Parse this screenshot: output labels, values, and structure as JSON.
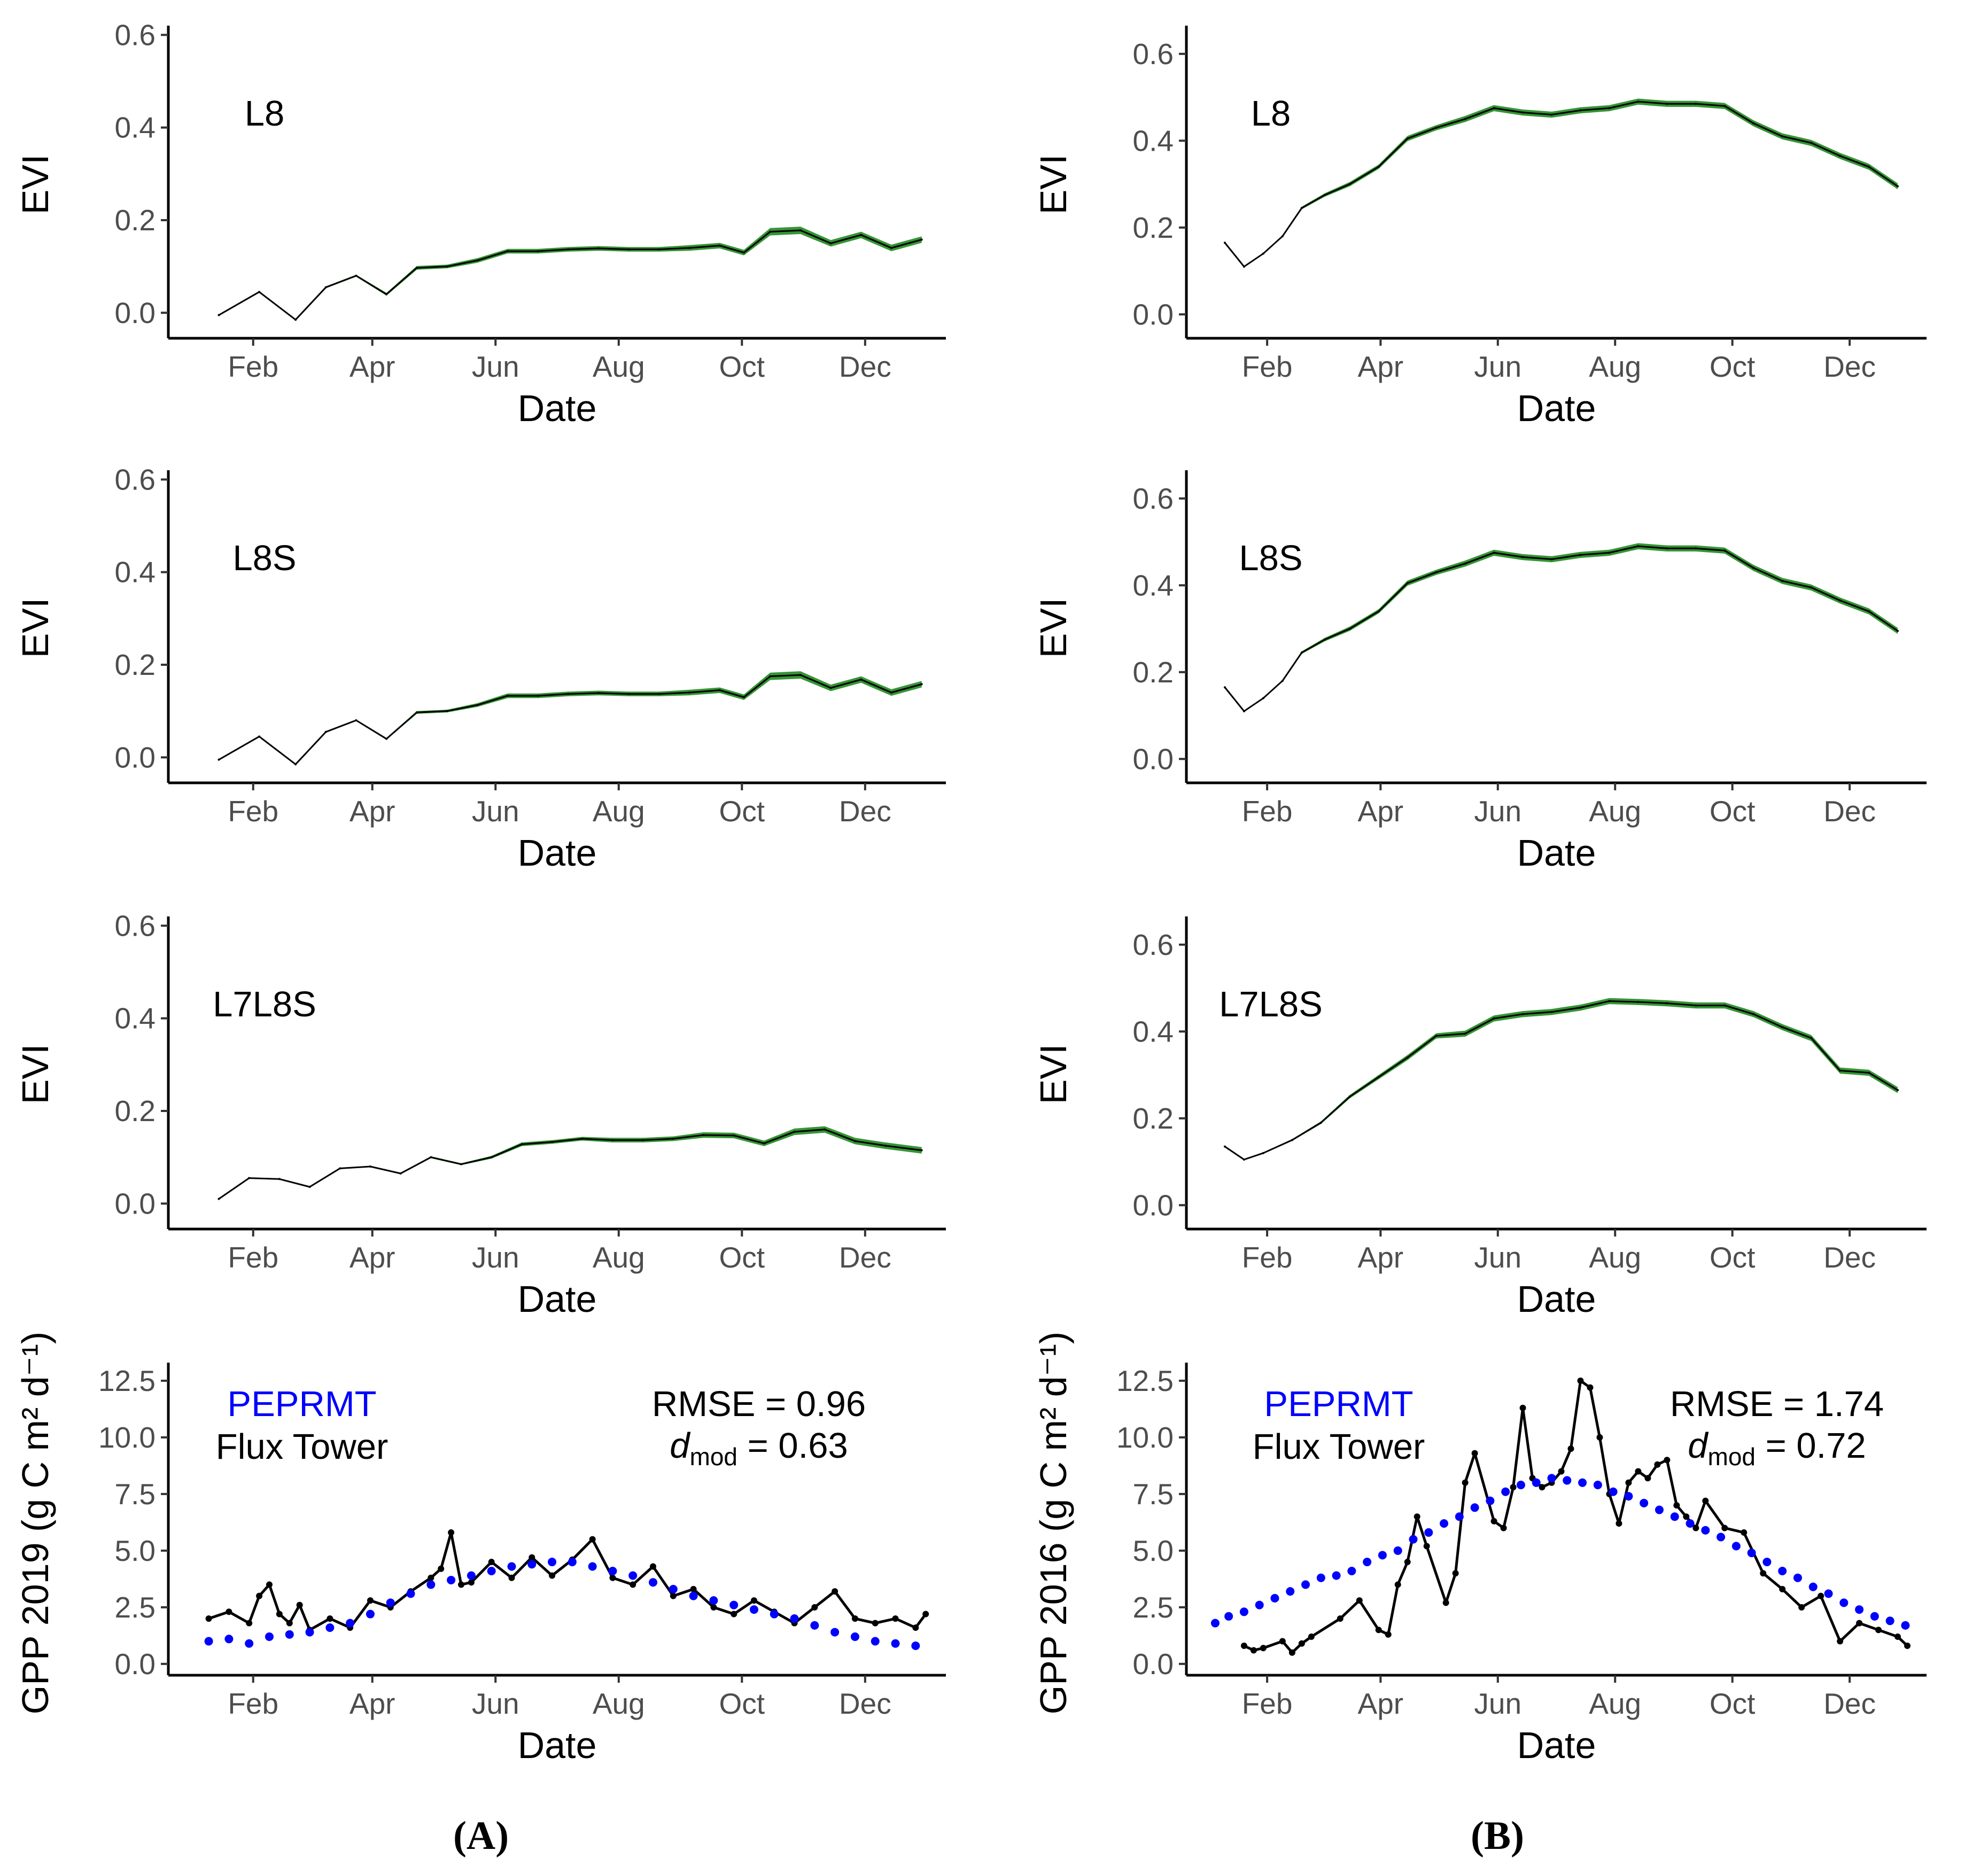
{
  "chart_data": [
    {
      "id": "A1",
      "type": "line",
      "xlabel": "Date",
      "ylabel": "EVI",
      "series_label": "L8",
      "x": [
        15,
        35,
        53,
        68,
        83,
        98,
        113,
        128,
        143,
        158,
        173,
        188,
        203,
        218,
        233,
        248,
        263,
        275,
        288,
        303,
        318,
        333,
        348,
        363
      ],
      "y": [
        -0.005,
        0.045,
        -0.015,
        0.055,
        0.08,
        0.04,
        0.097,
        0.1,
        0.113,
        0.133,
        0.133,
        0.137,
        0.139,
        0.137,
        0.137,
        0.14,
        0.145,
        0.13,
        0.175,
        0.178,
        0.15,
        0.168,
        0.14,
        0.158
      ],
      "band": [
        0.0,
        0.002,
        0.0,
        0.002,
        0.002,
        0.003,
        0.004,
        0.004,
        0.005,
        0.005,
        0.005,
        0.005,
        0.005,
        0.005,
        0.005,
        0.006,
        0.006,
        0.006,
        0.008,
        0.008,
        0.007,
        0.007,
        0.007,
        0.007
      ],
      "ylim": [
        -0.055,
        0.62
      ],
      "yticks": [
        0.0,
        0.2,
        0.4,
        0.6
      ],
      "ytick_labels": [
        "0.0",
        "0.2",
        "0.4",
        "0.6"
      ]
    },
    {
      "id": "A2",
      "type": "line",
      "xlabel": "Date",
      "ylabel": "EVI",
      "series_label": "L8S",
      "x": [
        15,
        35,
        53,
        68,
        83,
        98,
        113,
        128,
        143,
        158,
        173,
        188,
        203,
        218,
        233,
        248,
        263,
        275,
        288,
        303,
        318,
        333,
        348,
        363
      ],
      "y": [
        -0.005,
        0.045,
        -0.015,
        0.055,
        0.08,
        0.04,
        0.097,
        0.1,
        0.113,
        0.133,
        0.133,
        0.137,
        0.139,
        0.137,
        0.137,
        0.14,
        0.145,
        0.13,
        0.175,
        0.178,
        0.15,
        0.168,
        0.14,
        0.158
      ],
      "band": [
        0.0,
        0.001,
        0.0,
        0.001,
        0.001,
        0.002,
        0.003,
        0.003,
        0.004,
        0.005,
        0.005,
        0.005,
        0.005,
        0.005,
        0.005,
        0.006,
        0.006,
        0.006,
        0.008,
        0.008,
        0.007,
        0.007,
        0.007,
        0.007
      ],
      "ylim": [
        -0.055,
        0.62
      ],
      "yticks": [
        0.0,
        0.2,
        0.4,
        0.6
      ],
      "ytick_labels": [
        "0.0",
        "0.2",
        "0.4",
        "0.6"
      ]
    },
    {
      "id": "A3",
      "type": "line",
      "xlabel": "Date",
      "ylabel": "EVI",
      "series_label": "L7L8S",
      "x": [
        15,
        30,
        45,
        60,
        75,
        90,
        105,
        120,
        135,
        150,
        165,
        180,
        195,
        210,
        225,
        240,
        255,
        270,
        285,
        300,
        315,
        330,
        345,
        363
      ],
      "y": [
        0.01,
        0.055,
        0.053,
        0.036,
        0.076,
        0.08,
        0.065,
        0.1,
        0.085,
        0.1,
        0.128,
        0.133,
        0.14,
        0.137,
        0.137,
        0.14,
        0.148,
        0.147,
        0.13,
        0.155,
        0.16,
        0.135,
        0.125,
        0.115
      ],
      "band": [
        0.0,
        0.0,
        0.0,
        0.0,
        0.001,
        0.001,
        0.001,
        0.002,
        0.002,
        0.003,
        0.004,
        0.004,
        0.004,
        0.005,
        0.005,
        0.005,
        0.006,
        0.006,
        0.006,
        0.007,
        0.007,
        0.007,
        0.007,
        0.007
      ],
      "ylim": [
        -0.055,
        0.62
      ],
      "yticks": [
        0.0,
        0.2,
        0.4,
        0.6
      ],
      "ytick_labels": [
        "0.0",
        "0.2",
        "0.4",
        "0.6"
      ]
    },
    {
      "id": "A4",
      "type": "line+scatter",
      "xlabel": "Date",
      "ylabel": "GPP 2019 (g C m² d⁻¹)",
      "series": [
        {
          "name": "Flux Tower",
          "style": "line",
          "color": "#000000",
          "x": [
            10,
            20,
            30,
            35,
            40,
            45,
            50,
            55,
            60,
            70,
            80,
            90,
            100,
            110,
            120,
            125,
            130,
            135,
            140,
            150,
            160,
            170,
            180,
            190,
            200,
            210,
            220,
            230,
            240,
            250,
            260,
            270,
            280,
            290,
            300,
            310,
            320,
            330,
            340,
            350,
            360,
            365
          ],
          "y": [
            2.0,
            2.3,
            1.8,
            3.0,
            3.5,
            2.2,
            1.8,
            2.6,
            1.5,
            2.0,
            1.6,
            2.8,
            2.5,
            3.2,
            3.8,
            4.2,
            5.8,
            3.5,
            3.6,
            4.5,
            3.8,
            4.7,
            3.9,
            4.6,
            5.5,
            3.8,
            3.5,
            4.3,
            3.0,
            3.3,
            2.5,
            2.2,
            2.8,
            2.3,
            1.8,
            2.5,
            3.2,
            2.0,
            1.8,
            2.0,
            1.6,
            2.2
          ]
        },
        {
          "name": "PEPRMT",
          "style": "points",
          "color": "#0000ff",
          "x": [
            10,
            20,
            30,
            40,
            50,
            60,
            70,
            80,
            90,
            100,
            110,
            120,
            130,
            140,
            150,
            160,
            170,
            180,
            190,
            200,
            210,
            220,
            230,
            240,
            250,
            260,
            270,
            280,
            290,
            300,
            310,
            320,
            330,
            340,
            350,
            360
          ],
          "y": [
            1.0,
            1.1,
            0.9,
            1.2,
            1.3,
            1.4,
            1.6,
            1.8,
            2.2,
            2.7,
            3.1,
            3.5,
            3.7,
            3.9,
            4.1,
            4.3,
            4.4,
            4.5,
            4.5,
            4.3,
            4.1,
            3.9,
            3.6,
            3.3,
            3.0,
            2.8,
            2.6,
            2.4,
            2.2,
            2.0,
            1.7,
            1.4,
            1.2,
            1.0,
            0.9,
            0.8
          ]
        }
      ],
      "ylim": [
        -0.5,
        13.3
      ],
      "yticks": [
        0.0,
        2.5,
        5.0,
        7.5,
        10.0,
        12.5
      ],
      "ytick_labels": [
        "0.0",
        "2.5",
        "5.0",
        "7.5",
        "10.0",
        "12.5"
      ],
      "stats": {
        "rmse_label": "RMSE = 0.96",
        "d_label": "d",
        "d_sub": "mod",
        "d_value": " = 0.63"
      }
    },
    {
      "id": "B1",
      "type": "line",
      "xlabel": "Date",
      "ylabel": "EVI",
      "series_label": "L8",
      "x": [
        10,
        20,
        30,
        40,
        50,
        62,
        75,
        90,
        105,
        120,
        135,
        150,
        165,
        180,
        195,
        210,
        225,
        240,
        255,
        270,
        285,
        300,
        315,
        330,
        345,
        360
      ],
      "y": [
        0.165,
        0.11,
        0.14,
        0.18,
        0.245,
        0.275,
        0.3,
        0.34,
        0.405,
        0.43,
        0.45,
        0.475,
        0.465,
        0.46,
        0.47,
        0.475,
        0.49,
        0.485,
        0.485,
        0.48,
        0.44,
        0.41,
        0.395,
        0.365,
        0.34,
        0.295
      ],
      "band": [
        0.0,
        0.0,
        0.001,
        0.002,
        0.003,
        0.004,
        0.005,
        0.005,
        0.006,
        0.006,
        0.007,
        0.007,
        0.007,
        0.007,
        0.007,
        0.007,
        0.007,
        0.007,
        0.007,
        0.007,
        0.007,
        0.007,
        0.007,
        0.007,
        0.007,
        0.007
      ],
      "ylim": [
        -0.055,
        0.665
      ],
      "yticks": [
        0.0,
        0.2,
        0.4,
        0.6
      ],
      "ytick_labels": [
        "0.0",
        "0.2",
        "0.4",
        "0.6"
      ]
    },
    {
      "id": "B2",
      "type": "line",
      "xlabel": "Date",
      "ylabel": "EVI",
      "series_label": "L8S",
      "x": [
        10,
        20,
        30,
        40,
        50,
        62,
        75,
        90,
        105,
        120,
        135,
        150,
        165,
        180,
        195,
        210,
        225,
        240,
        255,
        270,
        285,
        300,
        315,
        330,
        345,
        360
      ],
      "y": [
        0.165,
        0.11,
        0.14,
        0.18,
        0.245,
        0.275,
        0.3,
        0.34,
        0.405,
        0.43,
        0.45,
        0.475,
        0.465,
        0.46,
        0.47,
        0.475,
        0.49,
        0.485,
        0.485,
        0.48,
        0.44,
        0.41,
        0.395,
        0.365,
        0.34,
        0.295
      ],
      "band": [
        0.0,
        0.0,
        0.001,
        0.002,
        0.003,
        0.004,
        0.005,
        0.005,
        0.006,
        0.006,
        0.007,
        0.007,
        0.007,
        0.007,
        0.007,
        0.007,
        0.007,
        0.007,
        0.007,
        0.007,
        0.007,
        0.007,
        0.007,
        0.007,
        0.007,
        0.007
      ],
      "ylim": [
        -0.055,
        0.665
      ],
      "yticks": [
        0.0,
        0.2,
        0.4,
        0.6
      ],
      "ytick_labels": [
        "0.0",
        "0.2",
        "0.4",
        "0.6"
      ]
    },
    {
      "id": "B3",
      "type": "line",
      "xlabel": "Date",
      "ylabel": "EVI",
      "series_label": "L7L8S",
      "x": [
        10,
        20,
        30,
        45,
        60,
        75,
        90,
        105,
        120,
        135,
        150,
        165,
        180,
        195,
        210,
        225,
        240,
        255,
        270,
        285,
        300,
        315,
        330,
        345,
        360
      ],
      "y": [
        0.135,
        0.105,
        0.12,
        0.15,
        0.19,
        0.25,
        0.295,
        0.34,
        0.39,
        0.395,
        0.43,
        0.44,
        0.445,
        0.455,
        0.47,
        0.468,
        0.465,
        0.46,
        0.46,
        0.44,
        0.41,
        0.385,
        0.31,
        0.305,
        0.265
      ],
      "band": [
        0.0,
        0.0,
        0.001,
        0.002,
        0.003,
        0.004,
        0.005,
        0.006,
        0.006,
        0.007,
        0.007,
        0.007,
        0.007,
        0.007,
        0.007,
        0.007,
        0.007,
        0.007,
        0.007,
        0.007,
        0.007,
        0.007,
        0.007,
        0.007,
        0.007
      ],
      "ylim": [
        -0.055,
        0.665
      ],
      "yticks": [
        0.0,
        0.2,
        0.4,
        0.6
      ],
      "ytick_labels": [
        "0.0",
        "0.2",
        "0.4",
        "0.6"
      ]
    },
    {
      "id": "B4",
      "type": "line+scatter",
      "xlabel": "Date",
      "ylabel": "GPP 2016 (g C m² d⁻¹)",
      "series": [
        {
          "name": "Flux Tower",
          "style": "line",
          "color": "#000000",
          "x": [
            20,
            25,
            30,
            40,
            45,
            50,
            55,
            70,
            80,
            90,
            95,
            100,
            105,
            110,
            115,
            125,
            130,
            135,
            140,
            150,
            155,
            160,
            165,
            170,
            175,
            180,
            185,
            190,
            195,
            200,
            205,
            210,
            215,
            220,
            225,
            230,
            235,
            240,
            245,
            250,
            255,
            260,
            270,
            280,
            290,
            300,
            310,
            320,
            330,
            340,
            350,
            360,
            365
          ],
          "y": [
            0.8,
            0.6,
            0.7,
            1.0,
            0.5,
            0.9,
            1.2,
            2.0,
            2.8,
            1.5,
            1.3,
            3.5,
            4.5,
            6.5,
            5.2,
            2.7,
            4.0,
            8.0,
            9.3,
            6.3,
            6.0,
            7.8,
            11.3,
            8.2,
            7.8,
            8.0,
            8.5,
            9.5,
            12.5,
            12.2,
            10.0,
            7.5,
            6.2,
            8.0,
            8.5,
            8.2,
            8.8,
            9.0,
            7.0,
            6.5,
            6.0,
            7.2,
            6.0,
            5.8,
            4.0,
            3.3,
            2.5,
            3.0,
            1.0,
            1.8,
            1.5,
            1.2,
            0.8
          ]
        },
        {
          "name": "PEPRMT",
          "style": "points",
          "color": "#0000ff",
          "x": [
            5,
            12,
            20,
            28,
            36,
            44,
            52,
            60,
            68,
            76,
            84,
            92,
            100,
            108,
            116,
            124,
            132,
            140,
            148,
            156,
            164,
            172,
            180,
            188,
            196,
            204,
            212,
            220,
            228,
            236,
            244,
            252,
            260,
            268,
            276,
            284,
            292,
            300,
            308,
            316,
            324,
            332,
            340,
            348,
            356,
            364
          ],
          "y": [
            1.8,
            2.1,
            2.3,
            2.6,
            2.9,
            3.2,
            3.5,
            3.8,
            3.9,
            4.1,
            4.5,
            4.8,
            5.0,
            5.5,
            5.8,
            6.2,
            6.5,
            6.9,
            7.2,
            7.6,
            7.9,
            8.0,
            8.2,
            8.1,
            8.0,
            7.9,
            7.6,
            7.4,
            7.1,
            6.8,
            6.5,
            6.2,
            5.9,
            5.6,
            5.2,
            4.9,
            4.5,
            4.1,
            3.8,
            3.4,
            3.1,
            2.7,
            2.4,
            2.1,
            1.9,
            1.7
          ]
        }
      ],
      "ylim": [
        -0.5,
        13.3
      ],
      "yticks": [
        0.0,
        2.5,
        5.0,
        7.5,
        10.0,
        12.5
      ],
      "ytick_labels": [
        "0.0",
        "2.5",
        "5.0",
        "7.5",
        "10.0",
        "12.5"
      ],
      "stats": {
        "rmse_label": "RMSE = 1.74",
        "d_label": "d",
        "d_sub": "mod",
        "d_value": " = 0.72"
      }
    }
  ],
  "x_axis": {
    "tick_days": [
      32,
      91,
      152,
      213,
      274,
      335
    ],
    "tick_labels": [
      "Feb",
      "Apr",
      "Jun",
      "Aug",
      "Oct",
      "Dec"
    ],
    "range": [
      -10,
      375
    ]
  },
  "legend": {
    "peprmt": "PEPRMT",
    "flux_tower": "Flux Tower"
  },
  "captions": {
    "A": "(A)",
    "B": "(B)"
  },
  "colors": {
    "evi_line": "#000000",
    "evi_band": "#1f8a1f",
    "flux": "#000000",
    "peprmt": "#0000ff"
  }
}
